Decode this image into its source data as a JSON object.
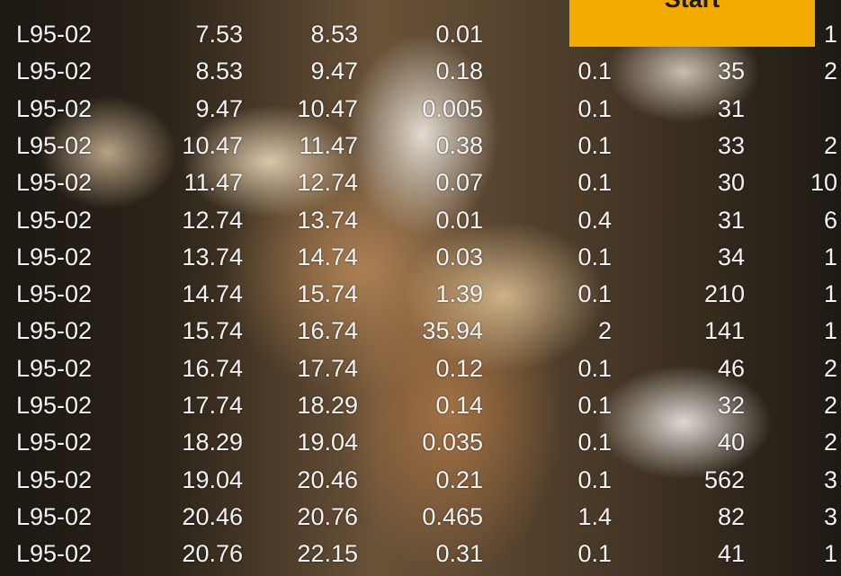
{
  "button": {
    "label": "Start"
  },
  "table": {
    "rows": [
      [
        "L95-02",
        "7.53",
        "8.53",
        "0.01",
        null,
        null,
        "1"
      ],
      [
        "L95-02",
        "8.53",
        "9.47",
        "0.18",
        "0.1",
        "35",
        "2"
      ],
      [
        "L95-02",
        "9.47",
        "10.47",
        "0.005",
        "0.1",
        "31",
        null
      ],
      [
        "L95-02",
        "10.47",
        "11.47",
        "0.38",
        "0.1",
        "33",
        "2"
      ],
      [
        "L95-02",
        "11.47",
        "12.74",
        "0.07",
        "0.1",
        "30",
        "10"
      ],
      [
        "L95-02",
        "12.74",
        "13.74",
        "0.01",
        "0.4",
        "31",
        "6"
      ],
      [
        "L95-02",
        "13.74",
        "14.74",
        "0.03",
        "0.1",
        "34",
        "1"
      ],
      [
        "L95-02",
        "14.74",
        "15.74",
        "1.39",
        "0.1",
        "210",
        "1"
      ],
      [
        "L95-02",
        "15.74",
        "16.74",
        "35.94",
        "2",
        "141",
        "1"
      ],
      [
        "L95-02",
        "16.74",
        "17.74",
        "0.12",
        "0.1",
        "46",
        "2"
      ],
      [
        "L95-02",
        "17.74",
        "18.29",
        "0.14",
        "0.1",
        "32",
        "2"
      ],
      [
        "L95-02",
        "18.29",
        "19.04",
        "0.035",
        "0.1",
        "40",
        "2"
      ],
      [
        "L95-02",
        "19.04",
        "20.46",
        "0.21",
        "0.1",
        "562",
        "3"
      ],
      [
        "L95-02",
        "20.46",
        "20.76",
        "0.465",
        "1.4",
        "82",
        "3"
      ],
      [
        "L95-02",
        "20.76",
        "22.15",
        "0.31",
        "0.1",
        "41",
        "1"
      ]
    ]
  }
}
